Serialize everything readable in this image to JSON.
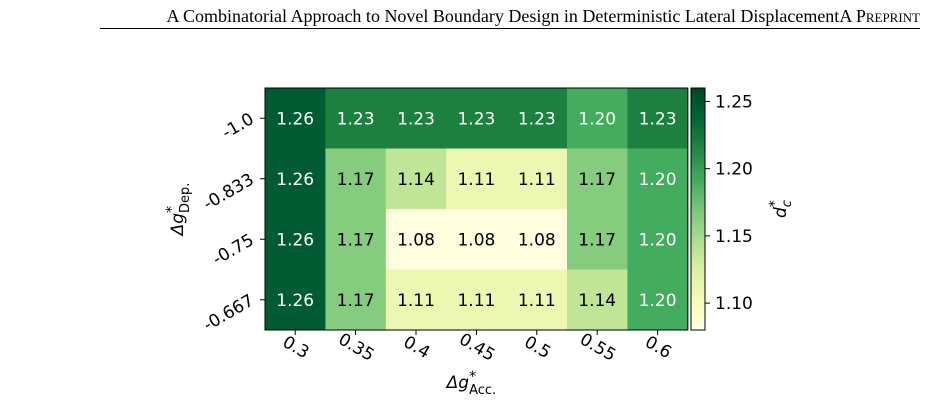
{
  "header": {
    "title": "A Combinatorial Approach to Novel Boundary Design in Deterministic Lateral Displacement",
    "tag": "A Preprint"
  },
  "chart_data": {
    "type": "heatmap",
    "x": [
      "0.3",
      "0.35",
      "0.4",
      "0.45",
      "0.5",
      "0.55",
      "0.6"
    ],
    "y": [
      "-1.0",
      "-0.833",
      "-0.75",
      "-0.667"
    ],
    "values": [
      [
        1.26,
        1.23,
        1.23,
        1.23,
        1.23,
        1.2,
        1.23
      ],
      [
        1.26,
        1.17,
        1.14,
        1.11,
        1.11,
        1.17,
        1.2
      ],
      [
        1.26,
        1.17,
        1.08,
        1.08,
        1.08,
        1.17,
        1.2
      ],
      [
        1.26,
        1.17,
        1.11,
        1.11,
        1.11,
        1.14,
        1.2
      ]
    ],
    "xlabel": "Δg*Acc.",
    "ylabel": "Δg*Dep.",
    "colorbar": {
      "label": "d*c",
      "ticks": [
        "1.10",
        "1.15",
        "1.20",
        "1.25"
      ],
      "range": [
        1.08,
        1.26
      ]
    },
    "colormap": "YlGn",
    "colors": {
      "low": "#ffffe5",
      "high": "#005a32"
    }
  }
}
